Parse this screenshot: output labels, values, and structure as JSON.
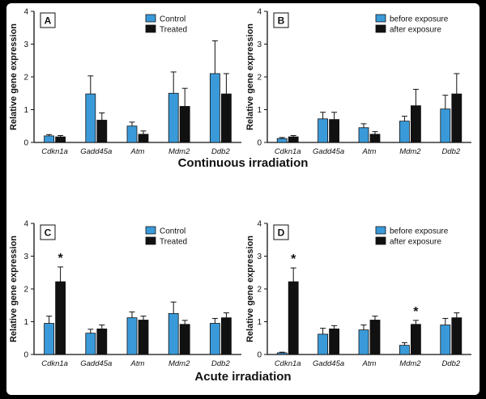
{
  "sections": {
    "continuous": "Continuous irradiation",
    "acute": "Acute irradiation"
  },
  "colors": {
    "control": "#3a9ad9",
    "treated": "#111111"
  },
  "chart_data": [
    {
      "panel": "A",
      "type": "bar",
      "categories": [
        "Cdkn1a",
        "Gadd45a",
        "Atm",
        "Mdm2",
        "Ddb2"
      ],
      "series": [
        {
          "name": "Control",
          "values": [
            0.2,
            1.48,
            0.5,
            1.5,
            2.1
          ],
          "errors": [
            0.04,
            0.55,
            0.12,
            0.65,
            1.0
          ]
        },
        {
          "name": "Treated",
          "values": [
            0.17,
            0.68,
            0.25,
            1.1,
            1.48
          ],
          "errors": [
            0.04,
            0.22,
            0.1,
            0.55,
            0.62
          ]
        }
      ],
      "ylabel": "Relative gene expression",
      "ylim": [
        0,
        4
      ],
      "yticks": [
        0,
        1,
        2,
        3,
        4
      ],
      "significant": [],
      "legend": "top-right"
    },
    {
      "panel": "B",
      "type": "bar",
      "categories": [
        "Cdkn1a",
        "Gadd45a",
        "Atm",
        "Mdm2",
        "Ddb2"
      ],
      "series": [
        {
          "name": "before exposure",
          "values": [
            0.12,
            0.72,
            0.45,
            0.65,
            1.02
          ],
          "errors": [
            0.03,
            0.2,
            0.12,
            0.15,
            0.42
          ]
        },
        {
          "name": "after exposure",
          "values": [
            0.17,
            0.7,
            0.25,
            1.12,
            1.48
          ],
          "errors": [
            0.04,
            0.22,
            0.08,
            0.5,
            0.62
          ]
        }
      ],
      "ylabel": "Relative gene expression",
      "ylim": [
        0,
        4
      ],
      "yticks": [
        0,
        1,
        2,
        3,
        4
      ],
      "significant": [],
      "legend": "top-right"
    },
    {
      "panel": "C",
      "type": "bar",
      "categories": [
        "Cdkn1a",
        "Gadd45a",
        "Atm",
        "Mdm2",
        "Ddb2"
      ],
      "series": [
        {
          "name": "Control",
          "values": [
            0.95,
            0.65,
            1.12,
            1.25,
            0.95
          ],
          "errors": [
            0.22,
            0.12,
            0.18,
            0.35,
            0.15
          ]
        },
        {
          "name": "Treated",
          "values": [
            2.22,
            0.78,
            1.05,
            0.92,
            1.12
          ],
          "errors": [
            0.45,
            0.12,
            0.12,
            0.12,
            0.15
          ]
        }
      ],
      "ylabel": "Relative gene expression",
      "ylim": [
        0,
        4
      ],
      "yticks": [
        0,
        1,
        2,
        3,
        4
      ],
      "significant": [
        {
          "category": 0,
          "series": 1,
          "mark": "*"
        }
      ],
      "legend": "top-right"
    },
    {
      "panel": "D",
      "type": "bar",
      "categories": [
        "Cdkn1a",
        "Gadd45a",
        "Atm",
        "Mdm2",
        "Ddb2"
      ],
      "series": [
        {
          "name": "before exposure",
          "values": [
            0.05,
            0.62,
            0.75,
            0.28,
            0.9
          ],
          "errors": [
            0.02,
            0.18,
            0.15,
            0.08,
            0.2
          ]
        },
        {
          "name": "after exposure",
          "values": [
            2.22,
            0.78,
            1.05,
            0.92,
            1.12
          ],
          "errors": [
            0.42,
            0.1,
            0.12,
            0.12,
            0.15
          ]
        }
      ],
      "ylabel": "Relative gene expression",
      "ylim": [
        0,
        4
      ],
      "yticks": [
        0,
        1,
        2,
        3,
        4
      ],
      "significant": [
        {
          "category": 0,
          "series": 1,
          "mark": "*"
        },
        {
          "category": 3,
          "series": 1,
          "mark": "*"
        }
      ],
      "legend": "top-right"
    }
  ]
}
